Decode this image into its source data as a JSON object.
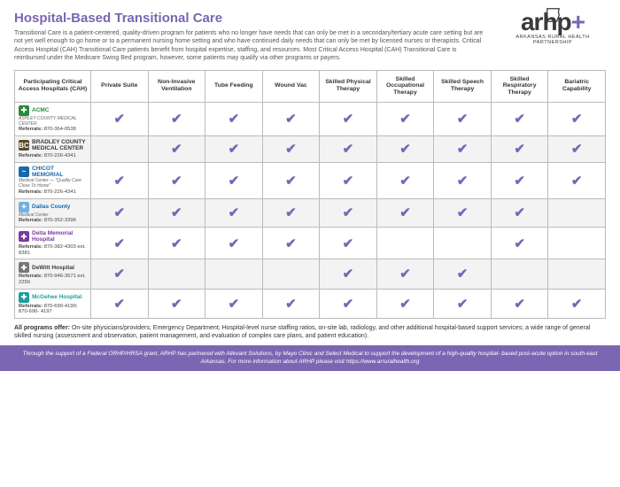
{
  "title": "Hospital-Based Transitional Care",
  "intro": "Transitional Care is a patient-centered, quality-driven program for patients who no longer have needs that can only be met in a secondary/tertiary acute care setting but are not yet well enough to go home or to a permanent nursing home setting and who have continued daily needs that can only be met by licensed nurses or therapists. Critical Access Hospital (CAH) Transitional Care patients benefit from hospital expertise, staffing, and resources. Most Critical Access Hospital (CAH) Transitional Care is reimbursed under the Medicare Swing Bed program, however, some patients may qualify via other programs or payers.",
  "brand": {
    "logo": "arhp",
    "plus": "+",
    "sub": "ARKANSAS RURAL HEALTH PARTNERSHIP"
  },
  "columns": [
    "Participating Critical Access Hospitals (CAH)",
    "Private Suite",
    "Non-Invasive Ventilation",
    "Tube Feeding",
    "Wound Vac",
    "Skilled Physical Therapy",
    "Skilled Occupational Therapy",
    "Skilled Speech Therapy",
    "Skilled Respiratory Therapy",
    "Bariatric Capability"
  ],
  "checkGlyph": "✔",
  "checkColor": "#7a66b3",
  "refLabel": "Referrals:",
  "hospitals": [
    {
      "name": "ACMC",
      "sub": "ASHLEY COUNTY MEDICAL CENTER",
      "nameColor": "#2a8a3a",
      "iconBg": "#2a8a3a",
      "iconTxt": "✚",
      "ref": "870-364-0538",
      "cells": [
        1,
        1,
        1,
        1,
        1,
        1,
        1,
        1,
        1
      ]
    },
    {
      "name": "BRADLEY COUNTY MEDICAL CENTER",
      "sub": "",
      "nameColor": "#3a3a3a",
      "iconBg": "#5a4a2a",
      "iconTxt": "BC",
      "ref": "870-226-4341",
      "cells": [
        0,
        1,
        1,
        1,
        1,
        1,
        1,
        1,
        1
      ]
    },
    {
      "name": "CHICOT MEMORIAL",
      "sub": "Medical Center — \"Quality Care Close To Home\"",
      "nameColor": "#1769aa",
      "iconBg": "#1769aa",
      "iconTxt": "~",
      "ref": "870-226-4341",
      "cells": [
        1,
        1,
        1,
        1,
        1,
        1,
        1,
        1,
        1
      ]
    },
    {
      "name": "Dallas County",
      "sub": "Medical Center",
      "nameColor": "#1769aa",
      "iconBg": "#6fb1e0",
      "iconTxt": "✦",
      "ref": "870-352-3396",
      "cells": [
        1,
        1,
        1,
        1,
        1,
        1,
        1,
        1,
        0
      ]
    },
    {
      "name": "Delta Memorial Hospital",
      "sub": "",
      "nameColor": "#7a3aa0",
      "iconBg": "#7a3aa0",
      "iconTxt": "✚",
      "ref": "870-382-4303 ext. 8381",
      "cells": [
        1,
        1,
        1,
        1,
        1,
        0,
        0,
        1,
        0
      ]
    },
    {
      "name": "DeWitt Hospital",
      "sub": "",
      "nameColor": "#3a3a3a",
      "iconBg": "#777",
      "iconTxt": "✚",
      "ref": "870-946-3571 ext. 2259",
      "cells": [
        1,
        0,
        0,
        0,
        1,
        1,
        1,
        0,
        0
      ]
    },
    {
      "name": "McGehee Hospital",
      "sub": "",
      "nameColor": "#1aa0a0",
      "iconBg": "#1aa0a0",
      "iconTxt": "✚",
      "ref": "870-690-4190; 870-690- 4197",
      "cells": [
        1,
        1,
        1,
        1,
        1,
        1,
        1,
        1,
        1
      ]
    }
  ],
  "allProgramsLabel": "All programs offer:",
  "allPrograms": "On-site physicians/providers; Emergency Department; Hospital-level nurse staffing ratios, on-site lab, radiology, and other additional hospital-based support services; a wide range of general skilled nursing (assessment and observation, patient management, and evaluation of complex care plans, and patient education).",
  "footer": "Through the support of a Federal ORHP/HRSA grant, ARHP has partnered with Allevant Solutions, by Mayo Clinic and Select Medical to support the development of a high-quality hospital- based post-acute option in south-east Arkansas. For more information about ARHP please visit https://www.arruralhealth.org"
}
